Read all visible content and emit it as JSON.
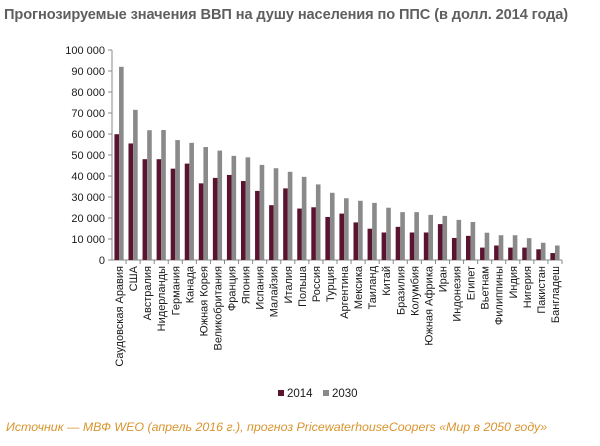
{
  "title": "Прогнозируемые значения ВВП на душу населения по ППС (в долл. 2014 года)",
  "source": "Источник — МВФ WEO (апрель 2016 г.), прогноз PricewaterhouseCoopers «Мир в 2050 году»",
  "chart_data": {
    "type": "bar",
    "title": "Прогнозируемые значения ВВП на душу населения по ППС (в долл. 2014 года)",
    "xlabel": "",
    "ylabel": "",
    "ylim": [
      0,
      100000
    ],
    "y_ticks": [
      0,
      10000,
      20000,
      30000,
      40000,
      50000,
      60000,
      70000,
      80000,
      90000,
      100000
    ],
    "y_tick_labels": [
      "0",
      "10 000",
      "20 000",
      "30 000",
      "40 000",
      "50 000",
      "60 000",
      "70 000",
      "80 000",
      "90 000",
      "100 000"
    ],
    "grid": false,
    "legend_position": "bottom",
    "categories": [
      "Саудовская Аравия",
      "США",
      "Австралия",
      "Нидерланды",
      "Германия",
      "Канада",
      "Южная Корея",
      "Великобритания",
      "Франция",
      "Япония",
      "Испания",
      "Малайзия",
      "Италия",
      "Польша",
      "Россия",
      "Турция",
      "Аргентина",
      "Мексика",
      "Таиланд",
      "Китай",
      "Бразилия",
      "Колумбия",
      "Южная Африка",
      "Иран",
      "Индонезия",
      "Египет",
      "Вьетнам",
      "Филиппины",
      "Индия",
      "Нигерия",
      "Пакистан",
      "Бангладеш"
    ],
    "series": [
      {
        "name": "2014",
        "color": "#5a1430",
        "values": [
          59900,
          55500,
          48000,
          48000,
          43500,
          45900,
          36500,
          39100,
          40500,
          37600,
          32900,
          26100,
          34100,
          24500,
          25100,
          20500,
          22100,
          17900,
          14900,
          13100,
          15800,
          13100,
          13100,
          17100,
          10500,
          11500,
          5900,
          6900,
          5900,
          5900,
          5100,
          3300
        ]
      },
      {
        "name": "2030",
        "color": "#8a8a8a",
        "values": [
          92000,
          71500,
          61800,
          61900,
          57100,
          55800,
          53800,
          52100,
          49600,
          48900,
          45300,
          43700,
          42000,
          39600,
          36000,
          32000,
          29400,
          28200,
          27200,
          24900,
          22800,
          22800,
          21500,
          21000,
          19100,
          18100,
          13000,
          11800,
          11800,
          10400,
          8200,
          6900
        ]
      }
    ]
  }
}
